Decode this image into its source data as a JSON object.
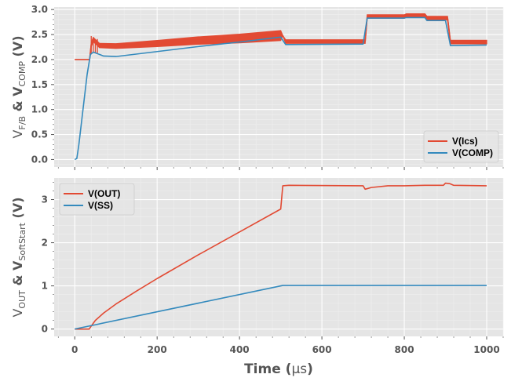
{
  "chart_data": [
    {
      "type": "line",
      "id": "top",
      "ylabel": {
        "main1": "V",
        "sub1": "F/B",
        "mid": " & V",
        "sub2": "COMP",
        "tail": " (V)"
      },
      "xlim": [
        -50,
        1040
      ],
      "ylim": [
        -0.15,
        3.05
      ],
      "yticks": [
        0.0,
        0.5,
        1.0,
        1.5,
        2.0,
        2.5,
        3.0
      ],
      "ytick_labels": [
        "0.0",
        "0.5",
        "1.0",
        "1.5",
        "2.0",
        "2.5",
        "3.0"
      ],
      "grid": true,
      "legend": {
        "position": "lower-right",
        "entries": [
          "V(Ics)",
          "V(COMP)"
        ]
      },
      "series": [
        {
          "name": "V(Ics)",
          "color": "#E24A33",
          "ripple": true,
          "points": [
            [
              0,
              2.0
            ],
            [
              36,
              2.0
            ],
            [
              40,
              2.3
            ],
            [
              45,
              2.4
            ],
            [
              60,
              2.28
            ],
            [
              100,
              2.27
            ],
            [
              200,
              2.32
            ],
            [
              300,
              2.38
            ],
            [
              400,
              2.42
            ],
            [
              500,
              2.48
            ],
            [
              505,
              2.48
            ],
            [
              512,
              2.36
            ],
            [
              700,
              2.36
            ],
            [
              705,
              2.36
            ],
            [
              710,
              2.86
            ],
            [
              800,
              2.86
            ],
            [
              805,
              2.88
            ],
            [
              850,
              2.88
            ],
            [
              855,
              2.83
            ],
            [
              900,
              2.83
            ],
            [
              905,
              2.83
            ],
            [
              912,
              2.35
            ],
            [
              1000,
              2.35
            ]
          ]
        },
        {
          "name": "V(COMP)",
          "color": "#348ABD",
          "ripple": false,
          "points": [
            [
              0,
              0.0
            ],
            [
              5,
              0.02
            ],
            [
              10,
              0.3
            ],
            [
              20,
              1.0
            ],
            [
              30,
              1.7
            ],
            [
              38,
              2.1
            ],
            [
              45,
              2.15
            ],
            [
              70,
              2.07
            ],
            [
              100,
              2.06
            ],
            [
              200,
              2.16
            ],
            [
              300,
              2.26
            ],
            [
              400,
              2.35
            ],
            [
              500,
              2.45
            ],
            [
              512,
              2.3
            ],
            [
              700,
              2.31
            ],
            [
              710,
              2.83
            ],
            [
              800,
              2.83
            ],
            [
              805,
              2.84
            ],
            [
              850,
              2.84
            ],
            [
              855,
              2.78
            ],
            [
              900,
              2.78
            ],
            [
              912,
              2.28
            ],
            [
              1000,
              2.29
            ]
          ]
        }
      ]
    },
    {
      "type": "line",
      "id": "bottom",
      "ylabel": {
        "main1": "V",
        "sub1": "OUT",
        "mid": " & V",
        "sub2": "SoftStart",
        "tail": " (V)"
      },
      "xlabel": {
        "main": "Time (",
        "unit": "μs",
        "tail": ")"
      },
      "xlim": [
        -50,
        1040
      ],
      "ylim": [
        -0.17,
        3.5
      ],
      "yticks": [
        0,
        1,
        2,
        3
      ],
      "ytick_labels": [
        "0",
        "1",
        "2",
        "3"
      ],
      "xticks": [
        0,
        200,
        400,
        600,
        800,
        1000
      ],
      "xtick_labels": [
        "0",
        "200",
        "400",
        "600",
        "800",
        "1000"
      ],
      "grid": true,
      "legend": {
        "position": "top-left",
        "entries": [
          "V(OUT)",
          "V(SS)"
        ]
      },
      "series": [
        {
          "name": "V(OUT)",
          "color": "#E24A33",
          "points": [
            [
              0,
              0.0
            ],
            [
              35,
              0.0
            ],
            [
              40,
              0.07
            ],
            [
              50,
              0.2
            ],
            [
              70,
              0.37
            ],
            [
              100,
              0.58
            ],
            [
              150,
              0.88
            ],
            [
              200,
              1.17
            ],
            [
              300,
              1.72
            ],
            [
              400,
              2.25
            ],
            [
              500,
              2.78
            ],
            [
              505,
              3.32
            ],
            [
              520,
              3.33
            ],
            [
              700,
              3.32
            ],
            [
              705,
              3.24
            ],
            [
              720,
              3.28
            ],
            [
              760,
              3.32
            ],
            [
              800,
              3.32
            ],
            [
              850,
              3.33
            ],
            [
              895,
              3.33
            ],
            [
              900,
              3.38
            ],
            [
              910,
              3.37
            ],
            [
              920,
              3.33
            ],
            [
              1000,
              3.32
            ]
          ]
        },
        {
          "name": "V(SS)",
          "color": "#348ABD",
          "points": [
            [
              0,
              0.0
            ],
            [
              505,
              1.01
            ],
            [
              1000,
              1.01
            ]
          ]
        }
      ]
    }
  ]
}
